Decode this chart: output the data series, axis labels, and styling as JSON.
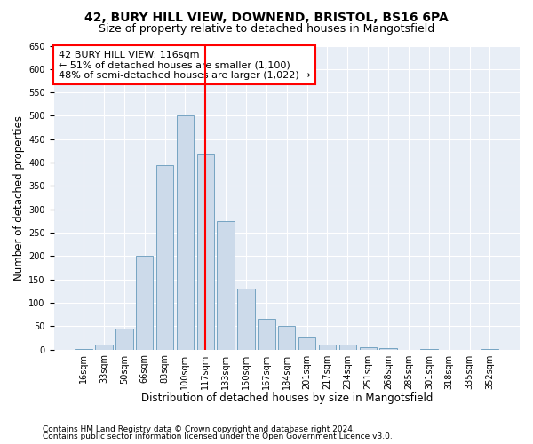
{
  "title1": "42, BURY HILL VIEW, DOWNEND, BRISTOL, BS16 6PA",
  "title2": "Size of property relative to detached houses in Mangotsfield",
  "xlabel": "Distribution of detached houses by size in Mangotsfield",
  "ylabel": "Number of detached properties",
  "footer1": "Contains HM Land Registry data © Crown copyright and database right 2024.",
  "footer2": "Contains public sector information licensed under the Open Government Licence v3.0.",
  "categories": [
    "16sqm",
    "33sqm",
    "50sqm",
    "66sqm",
    "83sqm",
    "100sqm",
    "117sqm",
    "133sqm",
    "150sqm",
    "167sqm",
    "184sqm",
    "201sqm",
    "217sqm",
    "234sqm",
    "251sqm",
    "268sqm",
    "285sqm",
    "301sqm",
    "318sqm",
    "335sqm",
    "352sqm"
  ],
  "bar_values": [
    2,
    10,
    45,
    200,
    395,
    500,
    420,
    275,
    130,
    65,
    50,
    25,
    10,
    10,
    5,
    3,
    0,
    2,
    0,
    0,
    2
  ],
  "bar_color": "#ccdaea",
  "bar_edge_color": "#6699bb",
  "vline_x_index": 6,
  "vline_color": "red",
  "annotation_text1": "42 BURY HILL VIEW: 116sqm",
  "annotation_text2": "← 51% of detached houses are smaller (1,100)",
  "annotation_text3": "48% of semi-detached houses are larger (1,022) →",
  "annotation_box_color": "red",
  "ylim": [
    0,
    650
  ],
  "yticks": [
    0,
    50,
    100,
    150,
    200,
    250,
    300,
    350,
    400,
    450,
    500,
    550,
    600,
    650
  ],
  "background_color": "#e8eef6",
  "grid_color": "white",
  "title1_fontsize": 10,
  "title2_fontsize": 9,
  "xlabel_fontsize": 8.5,
  "ylabel_fontsize": 8.5,
  "tick_fontsize": 7,
  "annotation_fontsize": 8,
  "footer_fontsize": 6.5
}
